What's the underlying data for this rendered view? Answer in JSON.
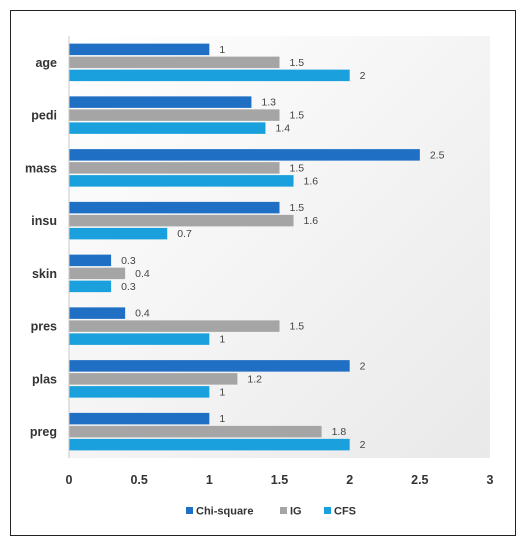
{
  "chart_data": {
    "type": "bar",
    "orientation": "horizontal",
    "categories": [
      "age",
      "pedi",
      "mass",
      "insu",
      "skin",
      "pres",
      "plas",
      "preg"
    ],
    "series": [
      {
        "name": "Chi-square",
        "color": "#1f6fc5",
        "values": [
          1,
          1.3,
          2.5,
          1.5,
          0.3,
          0.4,
          2,
          1
        ]
      },
      {
        "name": "IG",
        "color": "#a5a5a5",
        "values": [
          1.5,
          1.5,
          1.5,
          1.6,
          0.4,
          1.5,
          1.2,
          1.8
        ]
      },
      {
        "name": "CFS",
        "color": "#1aa0dc",
        "values": [
          2,
          1.4,
          1.6,
          0.7,
          0.3,
          1,
          1,
          2
        ]
      }
    ],
    "xlim": [
      0,
      3
    ],
    "xticks": [
      "0",
      "0.5",
      "1",
      "1.5",
      "2",
      "2.5",
      "3"
    ],
    "grid": false,
    "legend": "bottom"
  }
}
